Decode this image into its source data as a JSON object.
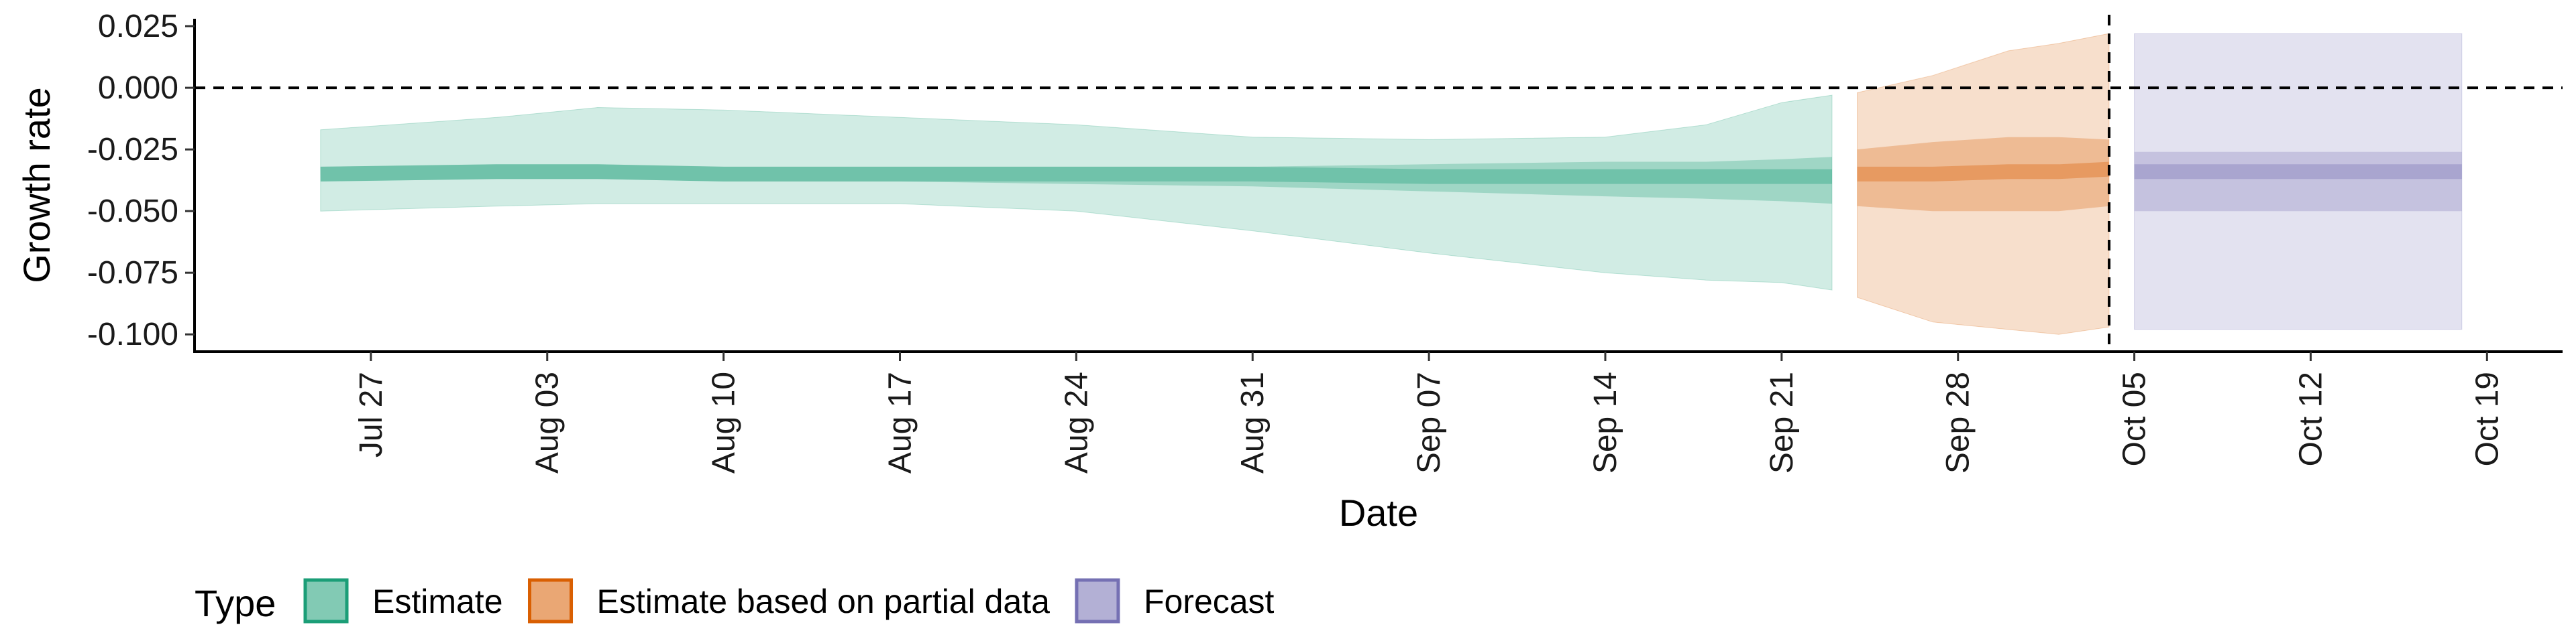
{
  "chart_data": {
    "type": "area",
    "xlabel": "Date",
    "ylabel": "Growth rate",
    "x_tick_labels": [
      "Jul 27",
      "Aug 03",
      "Aug 10",
      "Aug 17",
      "Aug 24",
      "Aug 31",
      "Sep 07",
      "Sep 14",
      "Sep 21",
      "Sep 28",
      "Oct 05",
      "Oct 12",
      "Oct 19"
    ],
    "x_tick_dates": [
      "2020-07-27",
      "2020-08-03",
      "2020-08-10",
      "2020-08-17",
      "2020-08-24",
      "2020-08-31",
      "2020-09-07",
      "2020-09-14",
      "2020-09-21",
      "2020-09-28",
      "2020-10-05",
      "2020-10-12",
      "2020-10-19"
    ],
    "y_ticks": [
      0.025,
      0.0,
      -0.025,
      -0.05,
      -0.075,
      -0.1
    ],
    "y_tick_labels": [
      "0.025",
      "0.000",
      "-0.025",
      "-0.050",
      "-0.075",
      "-0.100"
    ],
    "ylim": [
      -0.107,
      0.028
    ],
    "xlim": [
      "2020-07-20",
      "2020-10-22"
    ],
    "reference_line_y": 0,
    "forecast_start_date": "2020-10-04",
    "legend_title": "Type",
    "legend_position": "bottom",
    "series": [
      {
        "name": "Estimate",
        "color": "#1B9E77",
        "points": [
          {
            "date": "2020-07-25",
            "median": -0.035,
            "inner": [
              -0.038,
              -0.032
            ],
            "outer": [
              -0.05,
              -0.017
            ]
          },
          {
            "date": "2020-08-01",
            "median": -0.034,
            "inner": [
              -0.037,
              -0.031
            ],
            "outer": [
              -0.048,
              -0.012
            ]
          },
          {
            "date": "2020-08-05",
            "median": -0.034,
            "inner": [
              -0.037,
              -0.031
            ],
            "outer": [
              -0.047,
              -0.008
            ]
          },
          {
            "date": "2020-08-10",
            "median": -0.035,
            "inner": [
              -0.038,
              -0.032
            ],
            "outer": [
              -0.047,
              -0.009
            ]
          },
          {
            "date": "2020-08-17",
            "median": -0.035,
            "inner": [
              -0.038,
              -0.032
            ],
            "outer": [
              -0.047,
              -0.012
            ]
          },
          {
            "date": "2020-08-24",
            "median": -0.035,
            "inner": [
              -0.039,
              -0.032
            ],
            "outer": [
              -0.05,
              -0.015
            ]
          },
          {
            "date": "2020-08-31",
            "median": -0.035,
            "inner": [
              -0.04,
              -0.032
            ],
            "outer": [
              -0.058,
              -0.02
            ]
          },
          {
            "date": "2020-09-07",
            "median": -0.036,
            "inner": [
              -0.042,
              -0.031
            ],
            "outer": [
              -0.067,
              -0.021
            ]
          },
          {
            "date": "2020-09-14",
            "median": -0.036,
            "inner": [
              -0.044,
              -0.03
            ],
            "outer": [
              -0.075,
              -0.02
            ]
          },
          {
            "date": "2020-09-18",
            "median": -0.036,
            "inner": [
              -0.045,
              -0.03
            ],
            "outer": [
              -0.078,
              -0.015
            ]
          },
          {
            "date": "2020-09-21",
            "median": -0.036,
            "inner": [
              -0.046,
              -0.029
            ],
            "outer": [
              -0.079,
              -0.006
            ]
          },
          {
            "date": "2020-09-23",
            "median": -0.036,
            "inner": [
              -0.047,
              -0.028
            ],
            "outer": [
              -0.082,
              -0.003
            ]
          }
        ]
      },
      {
        "name": "Estimate based on partial data",
        "color": "#D95F02",
        "points": [
          {
            "date": "2020-09-24",
            "median": -0.035,
            "inner": [
              -0.048,
              -0.025
            ],
            "outer": [
              -0.085,
              -0.002
            ]
          },
          {
            "date": "2020-09-27",
            "median": -0.035,
            "inner": [
              -0.05,
              -0.022
            ],
            "outer": [
              -0.095,
              0.005
            ]
          },
          {
            "date": "2020-09-30",
            "median": -0.034,
            "inner": [
              -0.05,
              -0.02
            ],
            "outer": [
              -0.098,
              0.015
            ]
          },
          {
            "date": "2020-10-02",
            "median": -0.034,
            "inner": [
              -0.05,
              -0.02
            ],
            "outer": [
              -0.1,
              0.018
            ]
          },
          {
            "date": "2020-10-04",
            "median": -0.033,
            "inner": [
              -0.048,
              -0.021
            ],
            "outer": [
              -0.097,
              0.022
            ]
          }
        ]
      },
      {
        "name": "Forecast",
        "color": "#7570B3",
        "points": [
          {
            "date": "2020-10-05",
            "median": -0.034,
            "inner": [
              -0.05,
              -0.026
            ],
            "outer": [
              -0.098,
              0.022
            ]
          },
          {
            "date": "2020-10-18",
            "median": -0.034,
            "inner": [
              -0.05,
              -0.026
            ],
            "outer": [
              -0.098,
              0.022
            ]
          }
        ]
      }
    ]
  }
}
